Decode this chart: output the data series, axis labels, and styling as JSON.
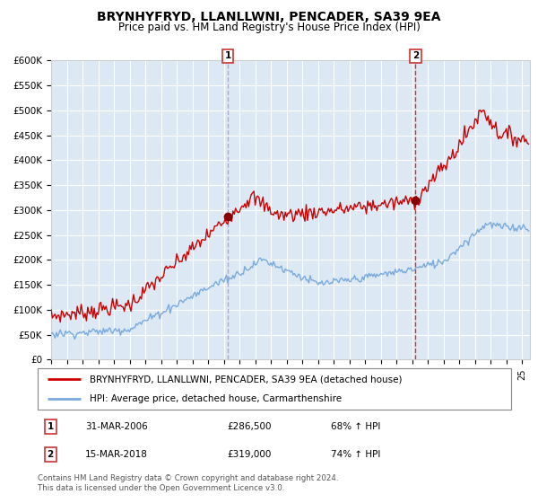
{
  "title": "BRYNHYFRYD, LLANLLWNI, PENCADER, SA39 9EA",
  "subtitle": "Price paid vs. HM Land Registry's House Price Index (HPI)",
  "title_fontsize": 10,
  "subtitle_fontsize": 8.5,
  "bg_color": "#dce9f5",
  "grid_color": "#ffffff",
  "marker1_x": 2006.25,
  "marker1_y": 286500,
  "marker2_x": 2018.21,
  "marker2_y": 319000,
  "vline1_x": 2006.25,
  "vline2_x": 2018.21,
  "ylim": [
    0,
    600000
  ],
  "ytick_step": 50000,
  "xlim_start": 1995.0,
  "xlim_end": 2025.5,
  "legend_label_red": "BRYNHYFRYD, LLANLLWNI, PENCADER, SA39 9EA (detached house)",
  "legend_label_blue": "HPI: Average price, detached house, Carmarthenshire",
  "annotation1_label": "1",
  "annotation2_label": "2",
  "ann1_date": "31-MAR-2006",
  "ann1_price": "£286,500",
  "ann1_hpi": "68% ↑ HPI",
  "ann2_date": "15-MAR-2018",
  "ann2_price": "£319,000",
  "ann2_hpi": "74% ↑ HPI",
  "footer": "Contains HM Land Registry data © Crown copyright and database right 2024.\nThis data is licensed under the Open Government Licence v3.0.",
  "red_color": "#cc0000",
  "blue_color": "#7aaadd",
  "marker_color": "#880000",
  "vline1_color": "#aaaacc",
  "vline2_color": "#cc0000",
  "box_edge_color": "#cc3333"
}
